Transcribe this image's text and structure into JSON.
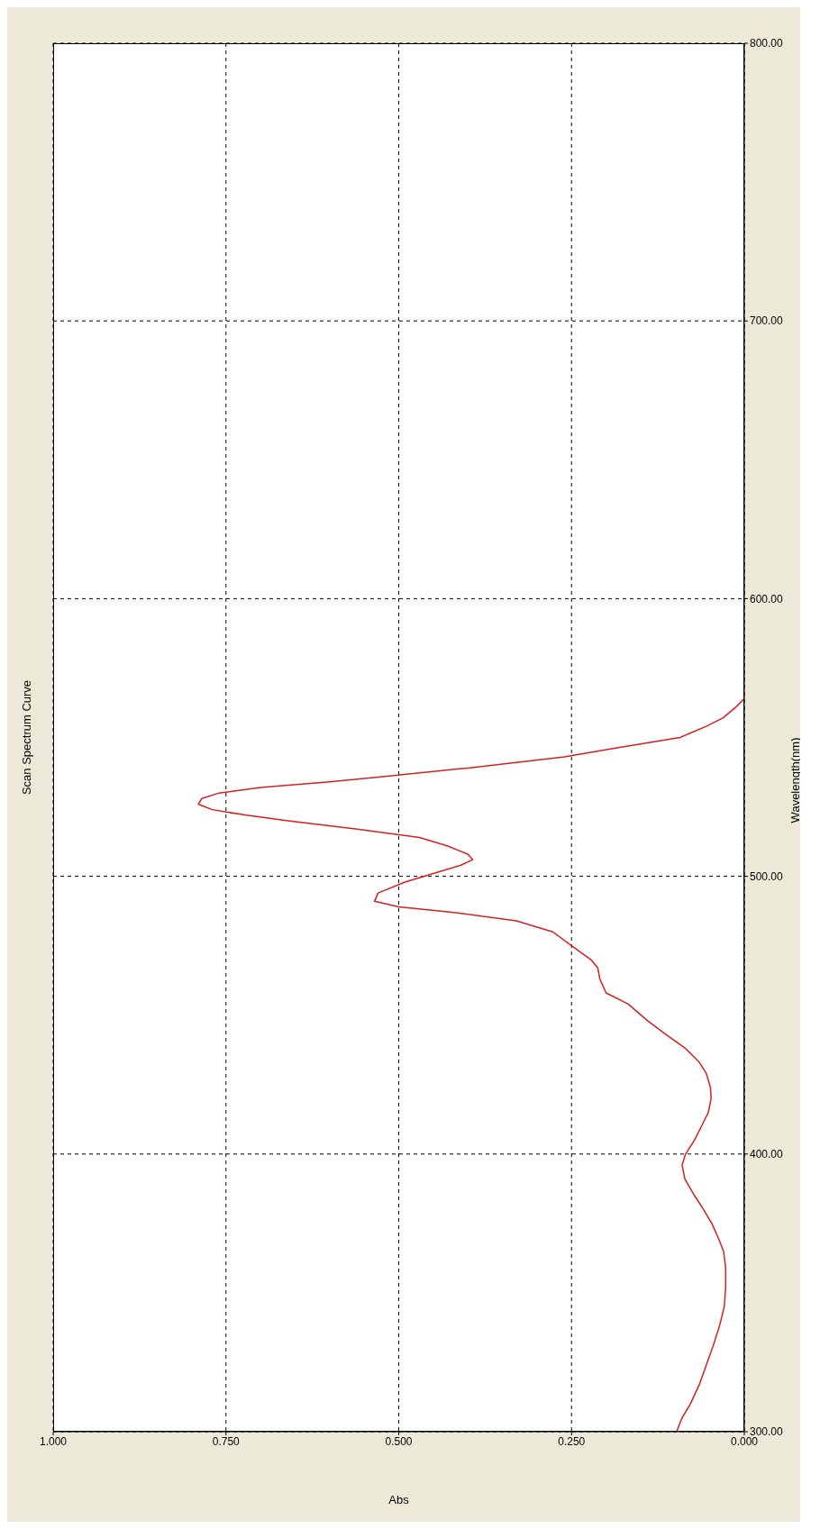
{
  "chart_data": {
    "type": "line",
    "title": "Scan Spectrum Curve",
    "xlabel": "Abs",
    "ylabel": "Wavelength(nm)",
    "series": [
      {
        "color": "#d42020",
        "x": [
          0.098,
          0.09,
          0.078,
          0.065,
          0.055,
          0.045,
          0.036,
          0.029,
          0.027,
          0.027,
          0.03,
          0.038,
          0.047,
          0.059,
          0.072,
          0.086,
          0.09,
          0.085,
          0.072,
          0.062,
          0.052,
          0.048,
          0.049,
          0.055,
          0.065,
          0.085,
          0.113,
          0.14,
          0.168,
          0.2,
          0.209,
          0.212,
          0.222,
          0.25,
          0.277,
          0.33,
          0.42,
          0.5,
          0.535,
          0.53,
          0.49,
          0.45,
          0.41,
          0.393,
          0.4,
          0.43,
          0.47,
          0.56,
          0.66,
          0.72,
          0.77,
          0.79,
          0.785,
          0.76,
          0.7,
          0.6,
          0.52,
          0.4,
          0.26,
          0.19,
          0.093,
          0.055,
          0.031,
          0.012,
          0
        ],
        "values": [
          300,
          305,
          310,
          317,
          324,
          331,
          338,
          345,
          352,
          359,
          365,
          370,
          375,
          380,
          385,
          391,
          396,
          400,
          405,
          410,
          415,
          420,
          424,
          429,
          433,
          438,
          443,
          448,
          454,
          458,
          463,
          467,
          470,
          475,
          480,
          484,
          487,
          489,
          491,
          494,
          498,
          501,
          504,
          506,
          508,
          511,
          514,
          517,
          520,
          522,
          524,
          526,
          528,
          530,
          532,
          534,
          536,
          539,
          543,
          546,
          550,
          554,
          557,
          561,
          564
        ]
      }
    ],
    "xlim": [
      1,
      0
    ],
    "ylim": [
      300,
      800
    ],
    "xticks": [
      {
        "value": 1,
        "label": "1.000"
      },
      {
        "value": 0.75,
        "label": "0.750"
      },
      {
        "value": 0.5,
        "label": "0.500"
      },
      {
        "value": 0.25,
        "label": "0.250"
      },
      {
        "value": 0,
        "label": "0.000"
      }
    ],
    "yticks": [
      {
        "value": 300,
        "label": "300.00"
      },
      {
        "value": 400,
        "label": "400.00"
      },
      {
        "value": 500,
        "label": "500.00"
      },
      {
        "value": 600,
        "label": "600.00"
      },
      {
        "value": 700,
        "label": "700.00"
      },
      {
        "value": 800,
        "label": "800.00"
      }
    ],
    "grid": true,
    "line_style": "solid"
  }
}
